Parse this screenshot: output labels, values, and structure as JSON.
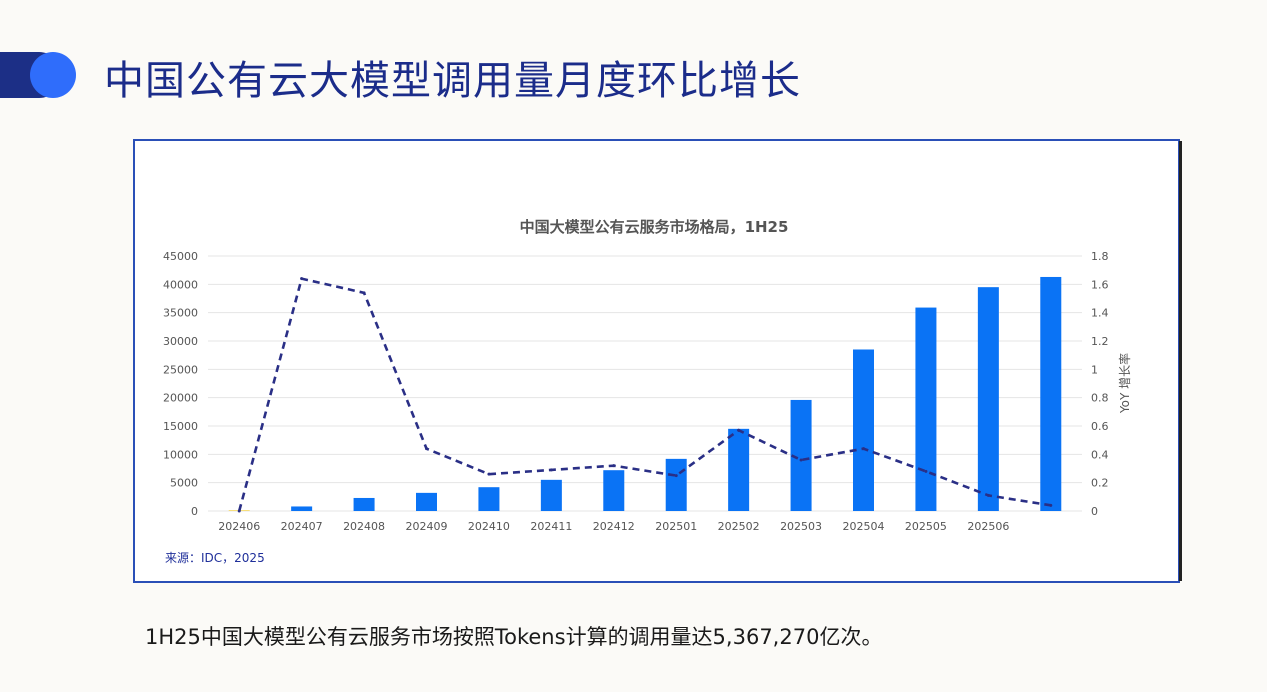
{
  "header": {
    "title": "中国公有云大模型调用量月度环比增长"
  },
  "chart_data": {
    "type": "bar",
    "title": "中国大模型公有云服务市场格局，1H25",
    "categories": [
      "202406",
      "202407",
      "202408",
      "202409",
      "202410",
      "202411",
      "202412",
      "202501",
      "202502",
      "202503",
      "202504",
      "202505",
      "202506",
      ""
    ],
    "series": [
      {
        "type": "bar",
        "axis": "left",
        "values": [
          100,
          800,
          2300,
          3200,
          4200,
          5500,
          7200,
          9200,
          14500,
          19600,
          28500,
          35900,
          39500,
          41300
        ]
      },
      {
        "type": "line",
        "axis": "right",
        "values": [
          0,
          1.64,
          1.54,
          0.44,
          0.26,
          0.29,
          0.32,
          0.25,
          0.57,
          0.36,
          0.44,
          0.28,
          0.11,
          0.04
        ]
      }
    ],
    "y_left": {
      "min": 0,
      "max": 45000,
      "ticks": [
        0,
        5000,
        10000,
        15000,
        20000,
        25000,
        30000,
        35000,
        40000,
        45000
      ]
    },
    "y_right": {
      "min": 0,
      "max": 1.8,
      "label": "YoY 增长率",
      "ticks": [
        0,
        0.2,
        0.4,
        0.6,
        0.8,
        1,
        1.2,
        1.4,
        1.6,
        1.8
      ]
    },
    "grid": true,
    "colors": {
      "bar": "#0a73f5",
      "line": "#2a2f86",
      "grid": "#e4e4e4",
      "frame": "#2a4fb7"
    },
    "source": "来源：IDC，2025"
  },
  "caption": "1H25中国大模型公有云服务市场按照Tokens计算的调用量达5,367,270亿次。"
}
